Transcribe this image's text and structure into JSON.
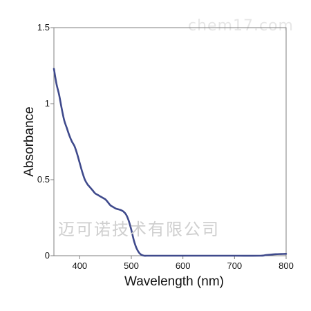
{
  "watermarks": {
    "top": "chem17.com",
    "middle": "迈可诺技术有限公司"
  },
  "chart_data": {
    "type": "line",
    "title": "",
    "xlabel": "Wavelength (nm)",
    "ylabel": "Absorbance",
    "xlim": [
      350,
      800
    ],
    "ylim": [
      0,
      1.5
    ],
    "x_ticks": [
      400,
      500,
      600,
      700,
      800
    ],
    "x_tick_labels": [
      "400",
      "500",
      "600",
      "700",
      "800"
    ],
    "y_ticks": [
      0,
      0.5,
      1,
      1.5
    ],
    "y_tick_labels": [
      "0",
      "0.5",
      "1",
      "1.5"
    ],
    "grid": false,
    "legend": "none",
    "line_color": "#3f4a8c",
    "series": [
      {
        "x": [
          350,
          355,
          360,
          365,
          370,
          375,
          380,
          385,
          390,
          395,
          400,
          405,
          410,
          415,
          420,
          425,
          430,
          435,
          440,
          445,
          450,
          455,
          460,
          465,
          470,
          475,
          480,
          485,
          490,
          495,
          500,
          505,
          510,
          515,
          520,
          525,
          530,
          540,
          560,
          600,
          650,
          700,
          750,
          760,
          770,
          780,
          790,
          800
        ],
        "y": [
          1.23,
          1.13,
          1.06,
          0.97,
          0.89,
          0.84,
          0.79,
          0.75,
          0.72,
          0.67,
          0.61,
          0.55,
          0.5,
          0.47,
          0.45,
          0.43,
          0.41,
          0.4,
          0.39,
          0.38,
          0.37,
          0.35,
          0.33,
          0.32,
          0.31,
          0.305,
          0.3,
          0.29,
          0.27,
          0.23,
          0.17,
          0.1,
          0.05,
          0.02,
          0.005,
          0.0,
          0.0,
          0.0,
          0.0,
          0.0,
          0.0,
          0.0,
          0.0,
          0.004,
          0.007,
          0.01,
          0.011,
          0.012
        ]
      }
    ]
  }
}
